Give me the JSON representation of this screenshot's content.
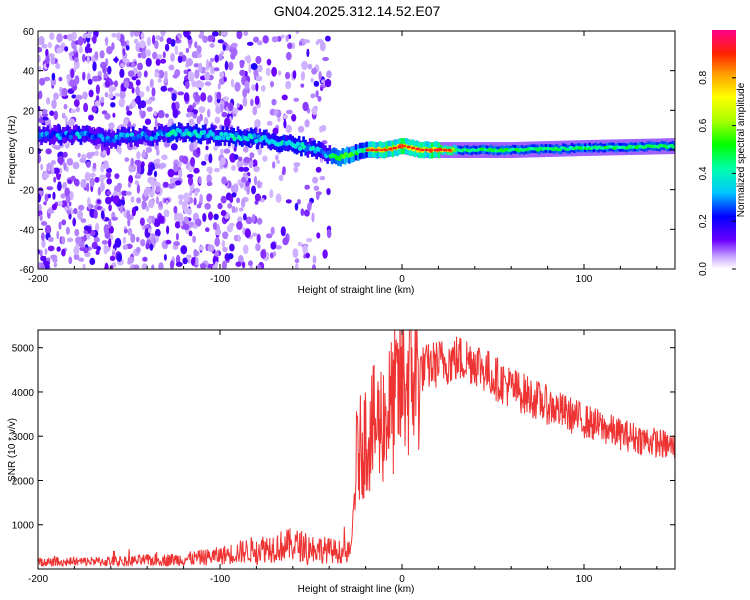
{
  "title": "GN04.2025.312.14.52.E07",
  "chart_data": [
    {
      "type": "heatmap",
      "name": "spectrogram",
      "xlabel": "Height of straight line (km)",
      "ylabel": "Frequency (Hz)",
      "xlim": [
        -200,
        150
      ],
      "ylim": [
        -60,
        60
      ],
      "xticks": [
        -200,
        -100,
        0,
        100
      ],
      "yticks": [
        60,
        40,
        20,
        0,
        -20,
        -40,
        -60
      ],
      "ridge": {
        "x": [
          -200,
          -180,
          -160,
          -140,
          -120,
          -100,
          -80,
          -60,
          -45,
          -35,
          -28,
          -20,
          -10,
          0,
          10,
          30,
          60,
          100,
          150
        ],
        "freq": [
          7,
          8,
          6,
          7,
          9,
          7,
          6,
          3,
          -1,
          -4,
          -2,
          0,
          0,
          2,
          0,
          0,
          0,
          1,
          2
        ]
      },
      "colorbar": {
        "label": "Normalized spectral amplitude",
        "range": [
          0,
          1
        ],
        "ticks": [
          0.0,
          0.2,
          0.4,
          0.6,
          0.8
        ]
      }
    },
    {
      "type": "line",
      "name": "snr",
      "xlabel": "Height of straight line (km)",
      "ylabel": "SNR (10 * v/v)",
      "xlim": [
        -200,
        150
      ],
      "ylim": [
        0,
        5400
      ],
      "xticks": [
        -200,
        -100,
        0,
        100
      ],
      "yticks": [
        5000,
        4000,
        3000,
        2000,
        1000
      ],
      "color": "#ee3333",
      "envelope": {
        "x": [
          -200,
          -150,
          -120,
          -100,
          -80,
          -60,
          -40,
          -28,
          -25,
          -20,
          -15,
          -10,
          -5,
          0,
          10,
          20,
          30,
          40,
          50,
          60,
          80,
          100,
          120,
          150
        ],
        "y": [
          150,
          180,
          220,
          300,
          450,
          550,
          420,
          350,
          2500,
          3000,
          3200,
          3400,
          3700,
          4200,
          4500,
          4650,
          4750,
          4700,
          4350,
          4100,
          3700,
          3350,
          3050,
          2750
        ]
      }
    }
  ]
}
